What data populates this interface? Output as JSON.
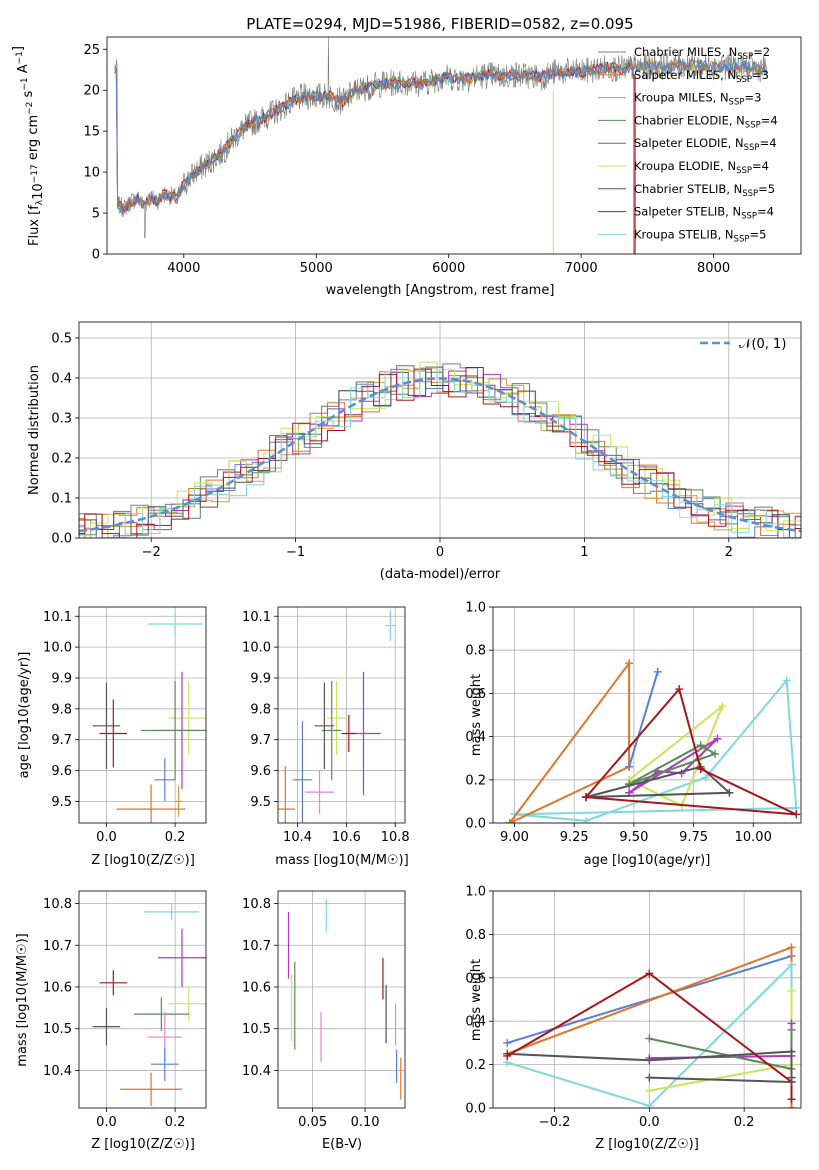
{
  "colors": {
    "chabrier_miles": "#5b7fd6",
    "salpeter_miles": "#e07429",
    "kroupa_miles": "#d79c3a",
    "chabrier_elodie": "#5a8a5a",
    "salpeter_elodie": "#a63cc0",
    "kroupa_elodie": "#c9e55a",
    "chabrier_stelib": "#555555",
    "salpeter_stelib": "#a8161c",
    "kroupa_stelib": "#80d7dd",
    "pink": "#e586c9",
    "gauss": "#5b8fd6"
  },
  "chart_data": [
    {
      "id": "spectrum",
      "type": "line",
      "title": "PLATE=0294, MJD=51986, FIBERID=0582, z=0.095",
      "xlabel": "wavelength [Angstrom, rest frame]",
      "ylabel": "Flux [f_λ10^-17 erg cm^-2 s^-1 A^-1]",
      "xlim": [
        3420,
        8660
      ],
      "ylim": [
        0,
        26.5
      ],
      "xticks": [
        4000,
        5000,
        6000,
        7000,
        8000
      ],
      "yticks": [
        0,
        5,
        10,
        15,
        20,
        25
      ],
      "continuum": [
        [
          3500,
          6.0
        ],
        [
          3550,
          5.6
        ],
        [
          3600,
          6.4
        ],
        [
          3650,
          6.8
        ],
        [
          3700,
          6.0
        ],
        [
          3750,
          6.9
        ],
        [
          3800,
          6.5
        ],
        [
          3850,
          7.3
        ],
        [
          3900,
          7.1
        ],
        [
          3950,
          6.8
        ],
        [
          4000,
          8.5
        ],
        [
          4100,
          10.2
        ],
        [
          4200,
          11.3
        ],
        [
          4300,
          12.6
        ],
        [
          4400,
          14.6
        ],
        [
          4500,
          15.9
        ],
        [
          4600,
          16.6
        ],
        [
          4700,
          17.5
        ],
        [
          4800,
          18.5
        ],
        [
          4900,
          19.2
        ],
        [
          5000,
          19.3
        ],
        [
          5100,
          19.3
        ],
        [
          5200,
          18.6
        ],
        [
          5300,
          20.0
        ],
        [
          5400,
          20.4
        ],
        [
          5500,
          20.8
        ],
        [
          5600,
          20.9
        ],
        [
          5700,
          21.0
        ],
        [
          5800,
          20.8
        ],
        [
          5900,
          21.3
        ],
        [
          6000,
          21.6
        ],
        [
          6100,
          21.4
        ],
        [
          6200,
          21.6
        ],
        [
          6300,
          21.9
        ],
        [
          6400,
          21.7
        ],
        [
          6500,
          21.9
        ],
        [
          6600,
          21.8
        ],
        [
          6700,
          21.6
        ],
        [
          6800,
          22.2
        ],
        [
          6900,
          22.3
        ],
        [
          7000,
          22.2
        ],
        [
          7100,
          22.5
        ],
        [
          7200,
          22.8
        ],
        [
          7300,
          22.6
        ],
        [
          7400,
          22.8
        ],
        [
          7600,
          22.9
        ],
        [
          7800,
          23.1
        ],
        [
          8000,
          22.9
        ],
        [
          8200,
          22.9
        ],
        [
          8400,
          22.6
        ]
      ],
      "legend": [
        {
          "label": "Chabrier MILES, N",
          "sub": "SSP",
          "val": "=2",
          "color": "chabrier_miles"
        },
        {
          "label": "Salpeter MILES, N",
          "sub": "SSP",
          "val": "=3",
          "color": "salpeter_miles"
        },
        {
          "label": "Kroupa MILES, N",
          "sub": "SSP",
          "val": "=3",
          "color": "kroupa_miles"
        },
        {
          "label": "Chabrier ELODIE, N",
          "sub": "SSP",
          "val": "=4",
          "color": "chabrier_elodie"
        },
        {
          "label": "Salpeter ELODIE, N",
          "sub": "SSP",
          "val": "=4",
          "color": "salpeter_elodie"
        },
        {
          "label": "Kroupa ELODIE, N",
          "sub": "SSP",
          "val": "=4",
          "color": "kroupa_elodie"
        },
        {
          "label": "Chabrier STELIB, N",
          "sub": "SSP",
          "val": "=5",
          "color": "chabrier_stelib"
        },
        {
          "label": "Salpeter STELIB, N",
          "sub": "SSP",
          "val": "=4",
          "color": "salpeter_stelib"
        },
        {
          "label": "Kroupa STELIB, N",
          "sub": "SSP",
          "val": "=5",
          "color": "kroupa_stelib"
        }
      ],
      "legend_position": "right"
    },
    {
      "id": "residuals",
      "type": "line",
      "xlabel": "(data-model)/error",
      "ylabel": "Normed distribution",
      "xlim": [
        -2.5,
        2.5
      ],
      "ylim": [
        0,
        0.54
      ],
      "xticks": [
        -2,
        -1,
        0,
        1,
        2
      ],
      "yticks": [
        0.0,
        0.1,
        0.2,
        0.3,
        0.4,
        0.5
      ],
      "grid": true,
      "legend_label": "𝒩(0, 1)",
      "legend_position": "top-right"
    },
    {
      "id": "age_vs_Z",
      "type": "scatter",
      "xlabel": "Z [log10(Z/Z☉)]",
      "ylabel": "age  [log10(age/yr)]",
      "xlim": [
        -0.08,
        0.29
      ],
      "ylim": [
        9.43,
        10.13
      ],
      "xticks": [
        0.0,
        0.2
      ],
      "yticks": [
        9.5,
        9.6,
        9.7,
        9.8,
        9.9,
        10.0,
        10.1
      ],
      "points": [
        {
          "c": "kroupa_stelib",
          "x": 0.2,
          "xe": 0.08,
          "y": 10.075,
          "ye": 0.04
        },
        {
          "c": "salpeter_stelib",
          "x": 0.02,
          "xe": 0.04,
          "y": 9.72,
          "ye": 0.11
        },
        {
          "c": "chabrier_stelib",
          "x": 0.0,
          "xe": 0.04,
          "y": 9.745,
          "ye": 0.14
        },
        {
          "c": "kroupa_elodie",
          "x": 0.24,
          "xe": 0.06,
          "y": 9.77,
          "ye": 0.12
        },
        {
          "c": "salpeter_elodie",
          "x": 0.22,
          "xe": 0.07,
          "y": 9.73,
          "ye": 0.19
        },
        {
          "c": "chabrier_elodie",
          "x": 0.2,
          "xe": 0.1,
          "y": 9.73,
          "ye": 0.16
        },
        {
          "c": "chabrier_miles",
          "x": 0.17,
          "xe": 0.03,
          "y": 9.57,
          "ye": 0.07
        },
        {
          "c": "salpeter_miles",
          "x": 0.13,
          "xe": 0.1,
          "y": 9.475,
          "ye": 0.08
        },
        {
          "c": "kroupa_miles",
          "x": 0.21,
          "xe": 0.01,
          "y": 9.5,
          "ye": 0.05
        }
      ]
    },
    {
      "id": "age_vs_mass",
      "type": "scatter",
      "xlabel": "mass [log10(M/M☉)]",
      "xlim": [
        10.32,
        10.84
      ],
      "ylim": [
        9.43,
        10.13
      ],
      "xticks": [
        10.4,
        10.6,
        10.8
      ],
      "yticks": [
        9.5,
        9.6,
        9.7,
        9.8,
        9.9,
        10.0,
        10.1
      ],
      "points": [
        {
          "c": "kroupa_stelib",
          "x": 10.78,
          "xe": 0.02,
          "y": 10.07,
          "ye": 0.05
        },
        {
          "c": "salpeter_elodie",
          "x": 10.67,
          "xe": 0.07,
          "y": 9.72,
          "ye": 0.2
        },
        {
          "c": "salpeter_stelib",
          "x": 10.61,
          "xe": 0.03,
          "y": 9.72,
          "ye": 0.06
        },
        {
          "c": "kroupa_elodie",
          "x": 10.56,
          "xe": 0.04,
          "y": 9.77,
          "ye": 0.12
        },
        {
          "c": "chabrier_elodie",
          "x": 10.54,
          "xe": 0.04,
          "y": 9.73,
          "ye": 0.16
        },
        {
          "c": "chabrier_stelib",
          "x": 10.51,
          "xe": 0.04,
          "y": 9.745,
          "ye": 0.14
        },
        {
          "c": "pink",
          "x": 10.49,
          "xe": 0.06,
          "y": 9.53,
          "ye": 0.07
        },
        {
          "c": "chabrier_miles",
          "x": 10.42,
          "xe": 0.04,
          "y": 9.57,
          "ye": 0.19
        },
        {
          "c": "salpeter_miles",
          "x": 10.35,
          "xe": 0.04,
          "y": 9.475,
          "ye": 0.14
        }
      ]
    },
    {
      "id": "massweight_vs_age",
      "type": "line",
      "xlabel": "age  [log10(age/yr)]",
      "ylabel": "mass weight",
      "xlim": [
        8.91,
        10.2
      ],
      "ylim": [
        0,
        1
      ],
      "xticks": [
        9.0,
        9.25,
        9.5,
        9.75,
        10.0
      ],
      "xticklabels": [
        "9.00",
        "9.25",
        "9.50",
        "9.75",
        "10.00"
      ],
      "yticks": [
        0.0,
        0.2,
        0.4,
        0.6,
        0.8,
        1.0
      ],
      "series": [
        {
          "c": "kroupa_stelib",
          "x": [
            9.0,
            9.3,
            9.8,
            10.14,
            10.18,
            9.0
          ],
          "y": [
            0.04,
            0.01,
            0.21,
            0.66,
            0.07,
            0.04
          ]
        },
        {
          "c": "salpeter_miles",
          "x": [
            8.98,
            9.48,
            9.48,
            8.98
          ],
          "y": [
            0.0,
            0.74,
            0.26,
            0.0
          ]
        },
        {
          "c": "kroupa_elodie",
          "x": [
            9.48,
            9.7,
            9.87,
            9.48
          ],
          "y": [
            0.2,
            0.08,
            0.54,
            0.2
          ]
        },
        {
          "c": "chabrier_miles",
          "x": [
            9.48,
            9.6
          ],
          "y": [
            0.26,
            0.7
          ]
        },
        {
          "c": "salpeter_elodie",
          "x": [
            9.48,
            9.6,
            9.7,
            9.85,
            9.48
          ],
          "y": [
            0.14,
            0.24,
            0.23,
            0.39,
            0.14
          ]
        },
        {
          "c": "chabrier_elodie",
          "x": [
            9.48,
            9.78,
            9.84,
            9.48
          ],
          "y": [
            0.18,
            0.36,
            0.32,
            0.18
          ]
        },
        {
          "c": "chabrier_stelib",
          "x": [
            9.3,
            9.78,
            9.9,
            9.3
          ],
          "y": [
            0.12,
            0.26,
            0.14,
            0.12
          ]
        },
        {
          "c": "salpeter_stelib",
          "x": [
            9.3,
            9.69,
            9.78,
            10.18,
            9.3
          ],
          "y": [
            0.12,
            0.62,
            0.25,
            0.04,
            0.12
          ]
        }
      ]
    },
    {
      "id": "mass_vs_Z",
      "type": "scatter",
      "xlabel": "Z [log10(Z/Z☉)]",
      "ylabel": "mass [log10(M/M☉)]",
      "xlim": [
        -0.08,
        0.29
      ],
      "ylim": [
        10.31,
        10.83
      ],
      "xticks": [
        0.0,
        0.2
      ],
      "yticks": [
        10.4,
        10.5,
        10.6,
        10.7,
        10.8
      ],
      "points": [
        {
          "c": "kroupa_stelib",
          "x": 0.19,
          "xe": 0.08,
          "y": 10.78,
          "ye": 0.02
        },
        {
          "c": "salpeter_elodie",
          "x": 0.22,
          "xe": 0.07,
          "y": 10.67,
          "ye": 0.07
        },
        {
          "c": "salpeter_stelib",
          "x": 0.02,
          "xe": 0.04,
          "y": 10.61,
          "ye": 0.03
        },
        {
          "c": "kroupa_elodie",
          "x": 0.24,
          "xe": 0.06,
          "y": 10.56,
          "ye": 0.04
        },
        {
          "c": "chabrier_elodie",
          "x": 0.16,
          "xe": 0.08,
          "y": 10.535,
          "ye": 0.04
        },
        {
          "c": "chabrier_stelib",
          "x": 0.0,
          "xe": 0.04,
          "y": 10.505,
          "ye": 0.045
        },
        {
          "c": "pink",
          "x": 0.17,
          "xe": 0.05,
          "y": 10.48,
          "ye": 0.06
        },
        {
          "c": "chabrier_miles",
          "x": 0.17,
          "xe": 0.04,
          "y": 10.415,
          "ye": 0.04
        },
        {
          "c": "salpeter_miles",
          "x": 0.13,
          "xe": 0.09,
          "y": 10.355,
          "ye": 0.04
        }
      ]
    },
    {
      "id": "mass_vs_ebv",
      "type": "scatter",
      "xlabel": "E(B-V)",
      "xlim": [
        0.017,
        0.138
      ],
      "ylim": [
        10.31,
        10.83
      ],
      "xticks": [
        0.05,
        0.1
      ],
      "yticks": [
        10.4,
        10.5,
        10.6,
        10.7,
        10.8
      ],
      "points": [
        {
          "c": "kroupa_stelib",
          "x": 0.063,
          "y": 10.77,
          "ye": 0.04
        },
        {
          "c": "salpeter_elodie",
          "x": 0.027,
          "y": 10.7,
          "ye": 0.08
        },
        {
          "c": "kroupa_elodie",
          "x": 0.03,
          "y": 10.55,
          "ye": 0.08
        },
        {
          "c": "chabrier_elodie",
          "x": 0.033,
          "y": 10.555,
          "ye": 0.105
        },
        {
          "c": "pink",
          "x": 0.058,
          "y": 10.48,
          "ye": 0.06
        },
        {
          "c": "salpeter_stelib",
          "x": 0.117,
          "y": 10.62,
          "ye": 0.05
        },
        {
          "c": "chabrier_stelib",
          "x": 0.12,
          "y": 10.535,
          "ye": 0.07
        },
        {
          "c": "pink",
          "x": 0.129,
          "y": 10.51,
          "ye": 0.05
        },
        {
          "c": "chabrier_miles",
          "x": 0.13,
          "y": 10.41,
          "ye": 0.04
        },
        {
          "c": "salpeter_miles",
          "x": 0.134,
          "y": 10.38,
          "ye": 0.05
        }
      ]
    },
    {
      "id": "massweight_vs_Z",
      "type": "line",
      "xlabel": "Z [log10(Z/Z☉)]",
      "ylabel": "mass weight",
      "xlim": [
        -0.33,
        0.32
      ],
      "ylim": [
        0,
        1
      ],
      "xticks": [
        -0.2,
        0.0,
        0.2
      ],
      "xticklabels": [
        "−0.2",
        "0.0",
        "0.2"
      ],
      "yticks": [
        0.0,
        0.2,
        0.4,
        0.6,
        0.8,
        1.0
      ],
      "series": [
        {
          "c": "chabrier_miles",
          "x": [
            -0.3,
            0.3,
            0.3
          ],
          "y": [
            0.3,
            0.7,
            0.26
          ]
        },
        {
          "c": "salpeter_miles",
          "x": [
            -0.3,
            0.3,
            0.3
          ],
          "y": [
            0.25,
            0.74,
            0.0
          ]
        },
        {
          "c": "kroupa_stelib",
          "x": [
            -0.3,
            0.0,
            0.3,
            0.3
          ],
          "y": [
            0.21,
            0.01,
            0.66,
            0.04
          ]
        },
        {
          "c": "kroupa_elodie",
          "x": [
            0.0,
            0.3,
            0.3
          ],
          "y": [
            0.08,
            0.2,
            0.54
          ]
        },
        {
          "c": "salpeter_elodie",
          "x": [
            0.0,
            0.3,
            0.3
          ],
          "y": [
            0.23,
            0.24,
            0.39
          ]
        },
        {
          "c": "chabrier_elodie",
          "x": [
            0.0,
            0.3,
            0.3
          ],
          "y": [
            0.32,
            0.18,
            0.36
          ]
        },
        {
          "c": "chabrier_stelib",
          "x": [
            -0.3,
            0.0,
            0.3,
            0.3
          ],
          "y": [
            0.25,
            0.22,
            0.26,
            0.14
          ]
        },
        {
          "c": "salpeter_stelib",
          "x": [
            -0.3,
            0.0,
            0.3,
            0.3
          ],
          "y": [
            0.24,
            0.62,
            0.12,
            0.04
          ]
        },
        {
          "c": "chabrier_stelib",
          "x": [
            0.0,
            0.3
          ],
          "y": [
            0.14,
            0.12
          ]
        }
      ]
    }
  ]
}
